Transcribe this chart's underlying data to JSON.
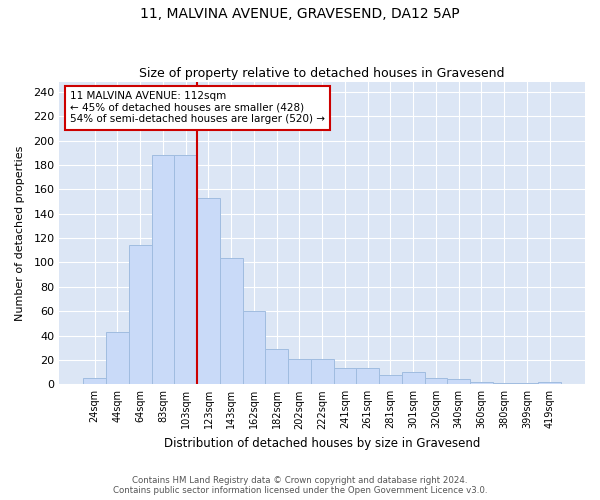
{
  "title": "11, MALVINA AVENUE, GRAVESEND, DA12 5AP",
  "subtitle": "Size of property relative to detached houses in Gravesend",
  "xlabel": "Distribution of detached houses by size in Gravesend",
  "ylabel": "Number of detached properties",
  "categories": [
    "24sqm",
    "44sqm",
    "64sqm",
    "83sqm",
    "103sqm",
    "123sqm",
    "143sqm",
    "162sqm",
    "182sqm",
    "202sqm",
    "222sqm",
    "241sqm",
    "261sqm",
    "281sqm",
    "301sqm",
    "320sqm",
    "340sqm",
    "360sqm",
    "380sqm",
    "399sqm",
    "419sqm"
  ],
  "values": [
    5,
    43,
    114,
    188,
    188,
    153,
    104,
    60,
    29,
    21,
    21,
    13,
    13,
    8,
    10,
    5,
    4,
    2,
    1,
    1,
    2
  ],
  "bar_color": "#c9daf8",
  "bar_edge_color": "#a0bce0",
  "vline_x": 4.5,
  "vline_color": "#cc0000",
  "annotation_title": "11 MALVINA AVENUE: 112sqm",
  "annotation_line2": "← 45% of detached houses are smaller (428)",
  "annotation_line3": "54% of semi-detached houses are larger (520) →",
  "annotation_box_color": "#cc0000",
  "ylim": [
    0,
    248
  ],
  "yticks": [
    0,
    20,
    40,
    60,
    80,
    100,
    120,
    140,
    160,
    180,
    200,
    220,
    240
  ],
  "footnote": "Contains HM Land Registry data © Crown copyright and database right 2024.\nContains public sector information licensed under the Open Government Licence v3.0.",
  "bg_color": "#dce6f5",
  "fig_bg_color": "#ffffff",
  "grid_color": "#ffffff"
}
